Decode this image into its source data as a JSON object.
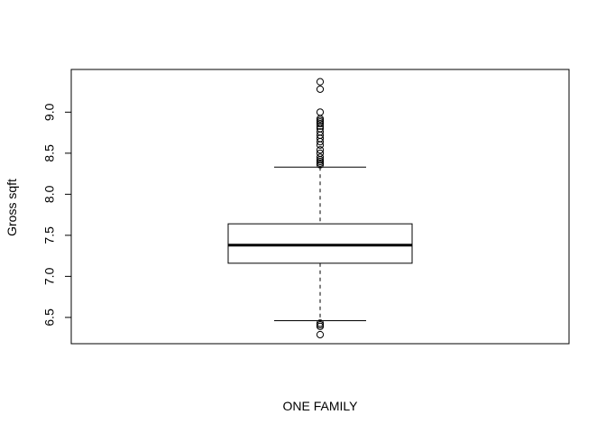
{
  "chart_data": {
    "type": "boxplot",
    "title": "",
    "xlabel": "ONE FAMILY",
    "ylabel": "Gross sqft",
    "ylim": [
      6.18,
      9.52
    ],
    "yticks": [
      6.5,
      7.0,
      7.5,
      8.0,
      8.5,
      9.0
    ],
    "ytick_labels": [
      "6.5",
      "7.0",
      "7.5",
      "8.0",
      "8.5",
      "9.0"
    ],
    "grid": false,
    "legend": "none",
    "box": {
      "name": "ONE FAMILY",
      "whisker_low": 6.46,
      "q1": 7.16,
      "median": 7.38,
      "q3": 7.64,
      "whisker_high": 8.33
    },
    "outliers_high": [
      9.37,
      9.28,
      9.0,
      8.92,
      8.9,
      8.88,
      8.86,
      8.83,
      8.8,
      8.76,
      8.72,
      8.68,
      8.64,
      8.6,
      8.54,
      8.5,
      8.45,
      8.42,
      8.4,
      8.38,
      8.36
    ],
    "outliers_low": [
      6.43,
      6.41,
      6.39,
      6.29
    ]
  }
}
